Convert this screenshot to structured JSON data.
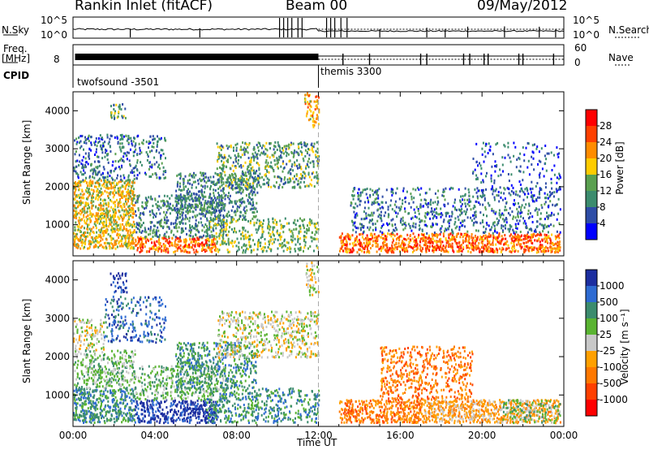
{
  "header": {
    "station": "Rankin Inlet (fitACF)",
    "beam": "Beam 00",
    "date": "09/May/2012"
  },
  "top_panels": {
    "nsky_label": "N.Sky",
    "nsky_ticks": [
      "10^5",
      "10^0"
    ],
    "nsearch_label": "N.Search",
    "nsearch_ticks": [
      "10^5",
      "10^0"
    ],
    "freq_label": "Freq.",
    "freq_unit": "[MHz]",
    "freq_ticks": [
      "8"
    ],
    "nave_label": "Nave",
    "nave_ticks": [
      "60",
      "0"
    ],
    "cpid_label": "CPID",
    "cpid_segments": [
      {
        "name": "twofsound -3501",
        "start_hour": 0,
        "end_hour": 12
      },
      {
        "name": "themis 3300",
        "start_hour": 12,
        "end_hour": 24
      }
    ]
  },
  "colors": {
    "power_scale": [
      "#0000ff",
      "#2e4da6",
      "#3c8c6e",
      "#5aa050",
      "#ffcc00",
      "#ff8c00",
      "#ff4000",
      "#ff0000"
    ],
    "velocity_scale": [
      "#1c2ea0",
      "#2e6bd2",
      "#3c8c6e",
      "#5ab432",
      "#c8c8c8",
      "#ffa000",
      "#ff7800",
      "#ff4000",
      "#ff0000"
    ]
  },
  "chart_data": [
    {
      "type": "heatmap",
      "title": "",
      "xlabel": "",
      "ylabel": "Slant Range [km]",
      "x_ticks": [
        "00:00",
        "04:00",
        "08:00",
        "12:00",
        "16:00",
        "20:00",
        "00:00"
      ],
      "y_ticks": [
        1000,
        2000,
        3000,
        4000
      ],
      "xlim_hours": [
        0,
        24
      ],
      "ylim": [
        180,
        4500
      ],
      "colorbar_label": "Power [dB]",
      "colorbar_ticks": [
        4,
        8,
        12,
        16,
        20,
        24,
        28
      ],
      "colorbar_range": [
        0,
        32
      ],
      "scatter_regions": [
        {
          "t0": 0.0,
          "t1": 3.0,
          "r0": 400,
          "r1": 2200,
          "level": 18,
          "density": 0.85
        },
        {
          "t0": 0.0,
          "t1": 4.5,
          "r0": 2200,
          "r1": 3400,
          "level": 8,
          "density": 0.35
        },
        {
          "t0": 1.8,
          "t1": 2.6,
          "r0": 3800,
          "r1": 4200,
          "level": 12,
          "density": 0.5
        },
        {
          "t0": 3.0,
          "t1": 7.0,
          "r0": 300,
          "r1": 700,
          "level": 24,
          "density": 0.8
        },
        {
          "t0": 3.0,
          "t1": 7.5,
          "r0": 700,
          "r1": 1800,
          "level": 10,
          "density": 0.45
        },
        {
          "t0": 5.0,
          "t1": 9.0,
          "r0": 1200,
          "r1": 2400,
          "level": 10,
          "density": 0.5
        },
        {
          "t0": 7.0,
          "t1": 12.0,
          "r0": 2000,
          "r1": 3200,
          "level": 12,
          "density": 0.45
        },
        {
          "t0": 6.5,
          "t1": 12.0,
          "r0": 300,
          "r1": 1200,
          "level": 14,
          "density": 0.4
        },
        {
          "t0": 11.3,
          "t1": 12.0,
          "r0": 3600,
          "r1": 4500,
          "level": 20,
          "density": 0.5
        },
        {
          "t0": 13.0,
          "t1": 23.8,
          "r0": 300,
          "r1": 800,
          "level": 24,
          "density": 0.85
        },
        {
          "t0": 13.5,
          "t1": 23.8,
          "r0": 800,
          "r1": 2000,
          "level": 8,
          "density": 0.3
        },
        {
          "t0": 19.5,
          "t1": 23.8,
          "r0": 1800,
          "r1": 3200,
          "level": 6,
          "density": 0.15
        }
      ]
    },
    {
      "type": "heatmap",
      "title": "",
      "xlabel": "Time UT",
      "ylabel": "Slant Range [km]",
      "x_ticks": [
        "00:00",
        "04:00",
        "08:00",
        "12:00",
        "16:00",
        "20:00",
        "00:00"
      ],
      "y_ticks": [
        1000,
        2000,
        3000,
        4000
      ],
      "xlim_hours": [
        0,
        24
      ],
      "ylim": [
        180,
        4500
      ],
      "colorbar_label": "Velocity [m s⁻¹]",
      "colorbar_ticks": [
        "1000",
        "500",
        "100",
        "25",
        "-25",
        "-100",
        "-500",
        "-1000"
      ],
      "scatter_regions": [
        {
          "t0": 0.0,
          "t1": 3.0,
          "r0": 300,
          "r1": 1200,
          "level": 2,
          "density": 0.8
        },
        {
          "t0": 0.0,
          "t1": 3.0,
          "r0": 1200,
          "r1": 2200,
          "level": 3,
          "density": 0.55
        },
        {
          "t0": 0.0,
          "t1": 1.5,
          "r0": 2200,
          "r1": 3000,
          "level": 4,
          "density": 0.45
        },
        {
          "t0": 1.5,
          "t1": 4.5,
          "r0": 2400,
          "r1": 3600,
          "level": 1,
          "density": 0.3
        },
        {
          "t0": 1.8,
          "t1": 2.6,
          "r0": 3700,
          "r1": 4200,
          "level": 0,
          "density": 0.45
        },
        {
          "t0": 3.0,
          "t1": 7.0,
          "r0": 300,
          "r1": 900,
          "level": 0,
          "density": 0.75
        },
        {
          "t0": 3.0,
          "t1": 7.5,
          "r0": 900,
          "r1": 1800,
          "level": 3,
          "density": 0.45
        },
        {
          "t0": 5.0,
          "t1": 9.0,
          "r0": 1200,
          "r1": 2400,
          "level": 2,
          "density": 0.5
        },
        {
          "t0": 7.0,
          "t1": 12.0,
          "r0": 2000,
          "r1": 3200,
          "level": 4,
          "density": 0.45
        },
        {
          "t0": 6.5,
          "t1": 12.0,
          "r0": 300,
          "r1": 1200,
          "level": 2,
          "density": 0.45
        },
        {
          "t0": 11.3,
          "t1": 12.0,
          "r0": 3600,
          "r1": 4500,
          "level": 4,
          "density": 0.4
        },
        {
          "t0": 13.0,
          "t1": 17.0,
          "r0": 300,
          "r1": 900,
          "level": 6,
          "density": 0.8
        },
        {
          "t0": 17.0,
          "t1": 23.8,
          "r0": 300,
          "r1": 900,
          "level": 5,
          "density": 0.85
        },
        {
          "t0": 15.0,
          "t1": 19.5,
          "r0": 900,
          "r1": 2300,
          "level": 6,
          "density": 0.4
        },
        {
          "t0": 21.0,
          "t1": 23.8,
          "r0": 300,
          "r1": 900,
          "level": 3,
          "density": 0.4
        }
      ]
    }
  ]
}
